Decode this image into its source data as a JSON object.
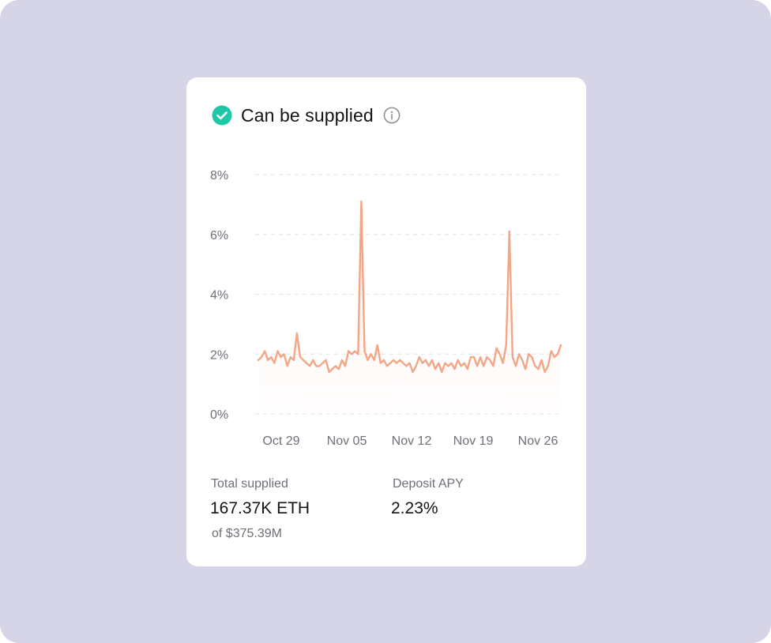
{
  "card": {
    "title": "Can be supplied",
    "status_color": "#1fc6a8",
    "status_icon": "check-circle-icon",
    "info_icon": "info-circle-icon"
  },
  "chart_data": {
    "type": "area",
    "title": "",
    "xlabel": "",
    "ylabel": "",
    "y_unit": "%",
    "ylim": [
      0,
      8
    ],
    "y_ticks": [
      {
        "value": 0,
        "label": "0%"
      },
      {
        "value": 2,
        "label": "2%"
      },
      {
        "value": 4,
        "label": "4%"
      },
      {
        "value": 6,
        "label": "6%"
      },
      {
        "value": 8,
        "label": "8%"
      }
    ],
    "x_ticks": [
      "Oct 29",
      "Nov 05",
      "Nov 12",
      "Nov 19",
      "Nov 26"
    ],
    "grid": true,
    "line_color": "#f3a686",
    "series": [
      {
        "values": [
          1.8,
          1.9,
          2.1,
          1.8,
          1.9,
          1.7,
          2.1,
          1.9,
          2.0,
          1.6,
          1.9,
          1.8,
          2.7,
          1.9,
          1.8,
          1.7,
          1.6,
          1.8,
          1.6,
          1.6,
          1.7,
          1.8,
          1.4,
          1.5,
          1.6,
          1.5,
          1.8,
          1.6,
          2.1,
          2.0,
          2.1,
          2.0,
          7.1,
          2.1,
          1.8,
          2.0,
          1.8,
          2.3,
          1.7,
          1.8,
          1.6,
          1.7,
          1.8,
          1.7,
          1.8,
          1.7,
          1.6,
          1.7,
          1.4,
          1.6,
          1.9,
          1.7,
          1.8,
          1.6,
          1.8,
          1.5,
          1.7,
          1.4,
          1.7,
          1.6,
          1.7,
          1.5,
          1.8,
          1.6,
          1.7,
          1.5,
          1.9,
          1.9,
          1.6,
          1.9,
          1.6,
          1.9,
          1.8,
          1.6,
          2.2,
          2.0,
          1.7,
          2.3,
          6.1,
          1.9,
          1.6,
          2.0,
          1.8,
          1.5,
          2.0,
          1.9,
          1.6,
          1.5,
          1.8,
          1.4,
          1.6,
          2.1,
          1.9,
          2.0,
          2.3
        ]
      }
    ]
  },
  "stats": {
    "supplied_label": "Total supplied",
    "supplied_value": "167.37K ETH",
    "supplied_sub": "of $375.39M",
    "apy_label": "Deposit APY",
    "apy_value": "2.23%"
  }
}
